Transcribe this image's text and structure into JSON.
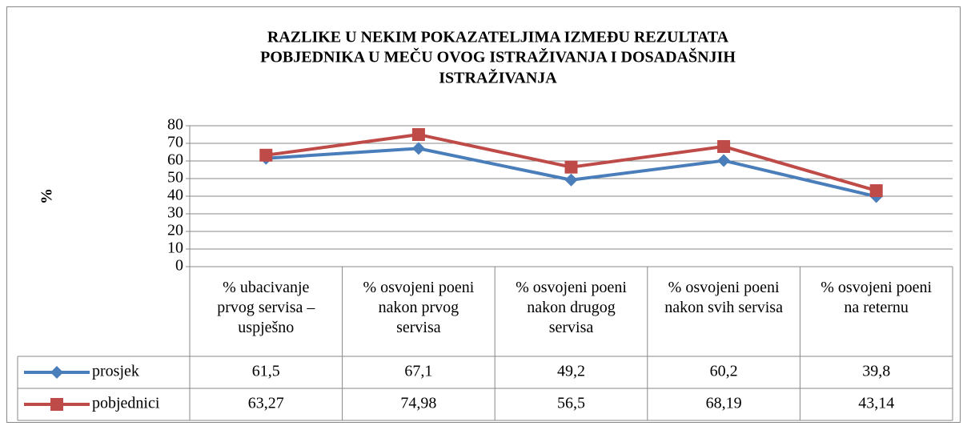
{
  "chart_data": {
    "type": "line",
    "title": [
      "RAZLIKE U NEKIM POKAZATELJIMA IZMEĐU REZULTATA",
      "POBJEDNIKA U MEČU OVOG ISTRAŽIVANJA  I  DOSADAŠNJIH",
      "ISTRAŽIVANJA"
    ],
    "y_label": "%",
    "categories": [
      "% ubacivanje prvog servisa – uspješno",
      "% osvojeni poeni nakon prvog servisa",
      "% osvojeni poeni nakon drugog servisa",
      "% osvojeni poeni nakon svih servisa",
      "% osvojeni poeni na reternu"
    ],
    "series": [
      {
        "name": "prosjek",
        "color": "#4a7ebb",
        "marker": "diamond",
        "values": [
          61.5,
          67.1,
          49.2,
          60.2,
          39.8
        ],
        "value_labels": [
          "61,5",
          "67,1",
          "49,2",
          "60,2",
          "39,8"
        ]
      },
      {
        "name": "pobjednici",
        "color": "#be4b48",
        "marker": "square",
        "values": [
          63.27,
          74.98,
          56.5,
          68.19,
          43.14
        ],
        "value_labels": [
          "63,27",
          "74,98",
          "56,5",
          "68,19",
          "43,14"
        ]
      }
    ],
    "ylim": [
      0,
      80
    ],
    "yticks": [
      0,
      10,
      20,
      30,
      40,
      50,
      60,
      70,
      80
    ],
    "grid": true,
    "legend": "table"
  }
}
